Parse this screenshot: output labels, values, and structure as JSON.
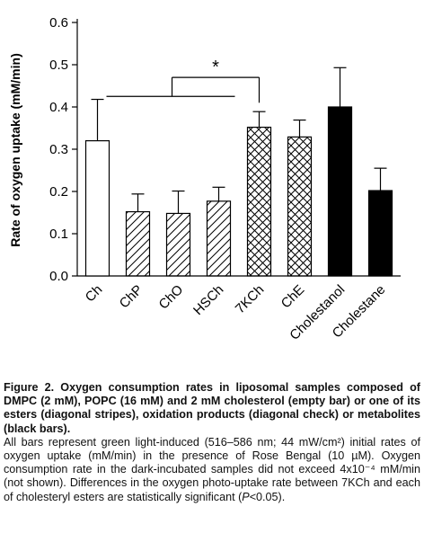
{
  "chart_data": {
    "type": "bar",
    "ylabel": "Rate of oxygen uptake (mM/min)",
    "xlabel": "",
    "ylim": [
      0,
      0.6
    ],
    "yticks": [
      "0.0",
      "0.1",
      "0.2",
      "0.3",
      "0.4",
      "0.5",
      "0.6"
    ],
    "categories": [
      "Ch",
      "ChP",
      "ChO",
      "HSCh",
      "7KCh",
      "ChE",
      "Cholestanol",
      "Cholestane"
    ],
    "values": [
      0.32,
      0.152,
      0.148,
      0.177,
      0.352,
      0.329,
      0.4,
      0.202
    ],
    "errors": [
      0.098,
      0.042,
      0.053,
      0.033,
      0.037,
      0.04,
      0.093,
      0.053
    ],
    "fills": [
      "empty",
      "diagonal stripes",
      "diagonal stripes",
      "diagonal stripes",
      "diagonal check",
      "diagonal check",
      "black",
      "black"
    ],
    "significance": {
      "marker": "*",
      "group": [
        "ChP",
        "ChO",
        "HSCh"
      ],
      "versus": "7KCh"
    },
    "grid": false
  },
  "caption": {
    "title": "Figure 2. Oxygen consumption rates in liposomal samples composed of DMPC (2 mM), POPC (16 mM) and 2 mM cholesterol (empty bar) or one of its esters (diagonal stripes), oxidation products (diagonal check) or metabolites (black bars).",
    "body_a": "All bars represent green light-induced (516–586 nm; 44 mW/cm²) initial rates of oxygen uptake (mM/min) in the presence of Rose Bengal (10 µM). Oxygen consumption rate in the dark-incubated samples did not exceed 4x10⁻⁴ mM/min (not shown). Differences in the oxygen photo-uptake rate between 7KCh and each of cholesteryl esters are statistically significant (",
    "body_p": "P",
    "body_b": "<0.05)."
  }
}
